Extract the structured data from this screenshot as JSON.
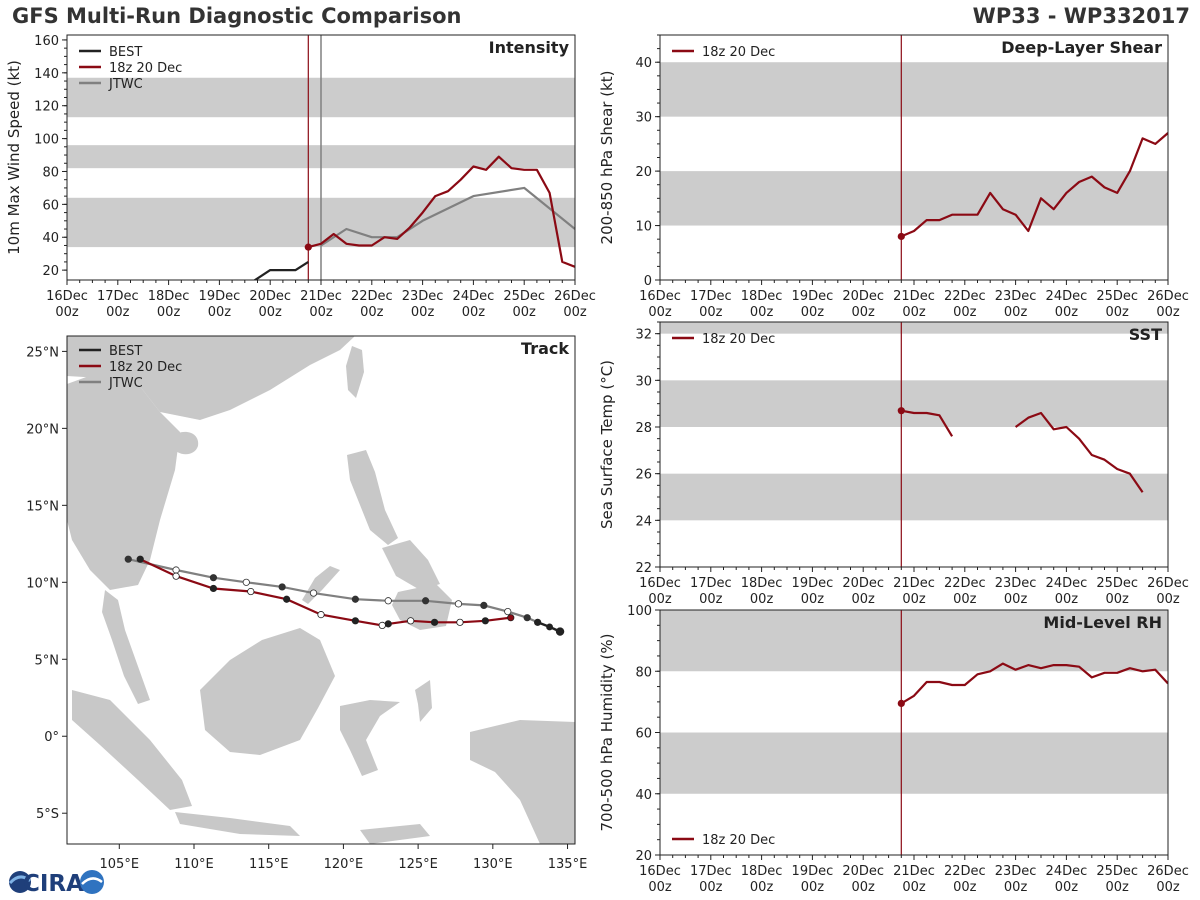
{
  "header": {
    "title_left": "GFS Multi-Run Diagnostic Comparison",
    "title_right": "WP33 - WP332017"
  },
  "logo": {
    "text": "CIRA"
  },
  "colors": {
    "best": "#222222",
    "run": "#8b0a14",
    "jtwc": "#808080",
    "band": "#cccccc",
    "land": "#c8c8c8"
  },
  "time_labels": [
    [
      "16Dec",
      "00z"
    ],
    [
      "17Dec",
      "00z"
    ],
    [
      "18Dec",
      "00z"
    ],
    [
      "19Dec",
      "00z"
    ],
    [
      "20Dec",
      "00z"
    ],
    [
      "21Dec",
      "00z"
    ],
    [
      "22Dec",
      "00z"
    ],
    [
      "23Dec",
      "00z"
    ],
    [
      "24Dec",
      "00z"
    ],
    [
      "25Dec",
      "00z"
    ],
    [
      "26Dec",
      "00z"
    ]
  ],
  "init_day": 4.75,
  "chart_data": [
    {
      "type": "line",
      "id": "intensity",
      "title": "Intensity",
      "ylabel": "10m Max Wind Speed (kt)",
      "xlim": [
        0,
        10
      ],
      "ylim": [
        14,
        163
      ],
      "yticks": [
        20,
        40,
        60,
        80,
        100,
        120,
        140,
        160
      ],
      "bands": [
        [
          34,
          64
        ],
        [
          82,
          96
        ],
        [
          113,
          137
        ]
      ],
      "legend": [
        "BEST",
        "18z 20 Dec",
        "JTWC"
      ],
      "extra_vline": 5.0,
      "series": [
        {
          "name": "BEST",
          "x": [
            3.5,
            3.75,
            4.0,
            4.25,
            4.5,
            4.75
          ],
          "y": [
            10,
            15,
            20,
            20,
            20,
            25
          ]
        },
        {
          "name": "18z 20 Dec",
          "x": [
            4.75,
            5.0,
            5.25,
            5.5,
            5.75,
            6.0,
            6.25,
            6.5,
            6.75,
            7.0,
            7.25,
            7.5,
            7.75,
            8.0,
            8.25,
            8.5,
            8.75,
            9.0,
            9.25,
            9.5,
            9.75,
            10.0
          ],
          "y": [
            34,
            36,
            42,
            36,
            35,
            35,
            40,
            39,
            46,
            55,
            65,
            68,
            75,
            83,
            81,
            89,
            82,
            81,
            81,
            67,
            25,
            22
          ]
        },
        {
          "name": "JTWC",
          "x": [
            5.0,
            5.5,
            6.0,
            6.5,
            7.0,
            8.0,
            9.0,
            10.0
          ],
          "y": [
            35,
            45,
            40,
            40,
            50,
            65,
            70,
            45
          ]
        }
      ]
    },
    {
      "type": "line",
      "id": "shear",
      "title": "Deep-Layer Shear",
      "ylabel": "200-850 hPa Shear (kt)",
      "xlim": [
        0,
        10
      ],
      "ylim": [
        0,
        45
      ],
      "yticks": [
        0,
        10,
        20,
        30,
        40
      ],
      "bands": [
        [
          10,
          20
        ],
        [
          30,
          40
        ]
      ],
      "legend": [
        "18z 20 Dec"
      ],
      "series": [
        {
          "name": "18z 20 Dec",
          "x": [
            4.75,
            5.0,
            5.25,
            5.5,
            5.75,
            6.0,
            6.25,
            6.5,
            6.75,
            7.0,
            7.25,
            7.5,
            7.75,
            8.0,
            8.25,
            8.5,
            8.75,
            9.0,
            9.25,
            9.5,
            9.75,
            10.0
          ],
          "y": [
            8,
            9,
            11,
            11,
            12,
            12,
            12,
            16,
            13,
            12,
            9,
            15,
            13,
            16,
            18,
            19,
            17,
            16,
            20,
            26,
            25,
            27
          ]
        }
      ]
    },
    {
      "type": "line",
      "id": "sst",
      "title": "SST",
      "ylabel": "Sea Surface Temp (°C)",
      "xlim": [
        0,
        10
      ],
      "ylim": [
        22,
        32.5
      ],
      "yticks": [
        22,
        24,
        26,
        28,
        30,
        32
      ],
      "bands": [
        [
          24,
          26
        ],
        [
          28,
          30
        ],
        [
          32,
          32.5
        ]
      ],
      "legend": [
        "18z 20 Dec"
      ],
      "series": [
        {
          "name": "18z 20 Dec",
          "x": [
            4.75,
            5.0,
            5.25,
            5.5,
            5.75
          ],
          "y": [
            28.7,
            28.6,
            28.6,
            28.5,
            27.6
          ]
        },
        {
          "name": "18z 20 Dec (cont.)",
          "x": [
            7.0,
            7.25,
            7.5,
            7.75,
            8.0,
            8.25,
            8.5,
            8.75,
            9.0,
            9.25,
            9.5
          ],
          "y": [
            28.0,
            28.4,
            28.6,
            27.9,
            28.0,
            27.5,
            26.8,
            26.6,
            26.2,
            26.0,
            25.2
          ]
        }
      ]
    },
    {
      "type": "line",
      "id": "rh",
      "title": "Mid-Level RH",
      "ylabel": "700-500 hPa Humidity (%)",
      "xlim": [
        0,
        10
      ],
      "ylim": [
        20,
        100
      ],
      "yticks": [
        20,
        40,
        60,
        80,
        100
      ],
      "bands": [
        [
          40,
          60
        ],
        [
          80,
          100
        ]
      ],
      "legend": [
        "18z 20 Dec"
      ],
      "legend_pos": "bottom-left",
      "series": [
        {
          "name": "18z 20 Dec",
          "x": [
            4.75,
            5.0,
            5.25,
            5.5,
            5.75,
            6.0,
            6.25,
            6.5,
            6.75,
            7.0,
            7.25,
            7.5,
            7.75,
            8.0,
            8.25,
            8.5,
            8.75,
            9.0,
            9.25,
            9.5,
            9.75,
            10.0
          ],
          "y": [
            69.5,
            72,
            76.5,
            76.5,
            75.5,
            75.5,
            79,
            80,
            82.5,
            80.5,
            82,
            81,
            82,
            82,
            81.5,
            78,
            79.5,
            79.5,
            81,
            80,
            80.5,
            76
          ]
        }
      ]
    },
    {
      "type": "scatter",
      "id": "track",
      "title": "Track",
      "xlim": [
        101.5,
        135.5
      ],
      "ylim": [
        -7,
        26
      ],
      "xticks": [
        105,
        110,
        115,
        120,
        125,
        130,
        135
      ],
      "xtick_labels": [
        "105°E",
        "110°E",
        "115°E",
        "120°E",
        "125°E",
        "130°E",
        "135°E"
      ],
      "yticks": [
        -5,
        0,
        5,
        10,
        15,
        20,
        25
      ],
      "ytick_labels": [
        "5°S",
        "0°",
        "5°N",
        "10°N",
        "15°N",
        "20°N",
        "25°N"
      ],
      "legend": [
        "BEST",
        "18z 20 Dec",
        "JTWC"
      ],
      "series": [
        {
          "name": "BEST",
          "lon": [
            134.5,
            133.8,
            133.0
          ],
          "lat": [
            6.8,
            7.1,
            7.4
          ]
        },
        {
          "name": "18z 20 Dec",
          "lon": [
            131.2,
            129.5,
            127.8,
            126.1,
            124.5,
            123.0,
            122.6,
            120.8,
            118.5,
            116.2,
            113.8,
            111.3,
            108.8,
            106.4
          ],
          "lat": [
            7.7,
            7.5,
            7.4,
            7.4,
            7.5,
            7.3,
            7.2,
            7.5,
            7.9,
            8.9,
            9.4,
            9.6,
            10.4,
            11.5
          ]
        },
        {
          "name": "JTWC",
          "lon": [
            133.0,
            132.3,
            131.0,
            129.4,
            127.7,
            125.5,
            123.0,
            120.8,
            118.0,
            115.9,
            113.5,
            111.3,
            108.8,
            105.6
          ],
          "lat": [
            7.4,
            7.7,
            8.1,
            8.5,
            8.6,
            8.8,
            8.8,
            8.9,
            9.3,
            9.7,
            10.0,
            10.3,
            10.8,
            11.5
          ]
        }
      ]
    }
  ]
}
